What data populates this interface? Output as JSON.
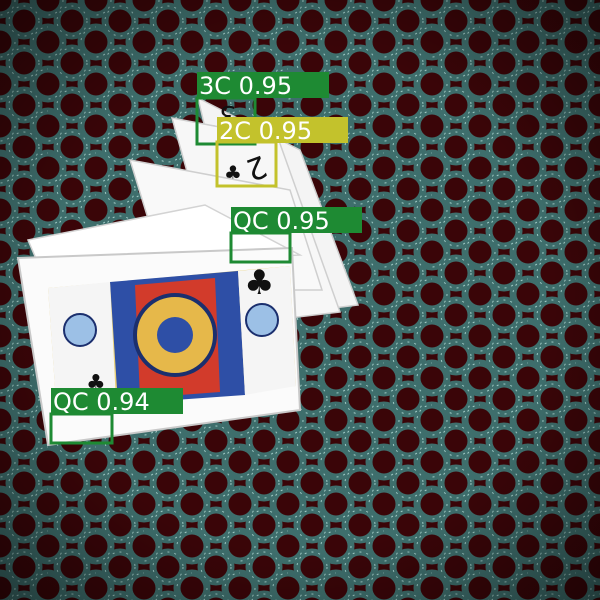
{
  "image": {
    "description_free": true
  },
  "colors": {
    "background_dark": "#3a0508",
    "mesh": "#3e6e6c",
    "mesh_highlight": "#9fc9c4",
    "card_face": "#fbfbfb",
    "card_edge": "#cfcfcf",
    "box_green": "#1e8a33",
    "box_yellow": "#c3c22c",
    "label_text": "#ffffff"
  },
  "detections": [
    {
      "label": "3C 0.95",
      "color": "#1e8a33"
    },
    {
      "label": "2C 0.95",
      "color": "#c3c22c"
    },
    {
      "label": "QC 0.95",
      "color": "#1e8a33"
    },
    {
      "label": "QC 0.94",
      "color": "#1e8a33"
    }
  ]
}
